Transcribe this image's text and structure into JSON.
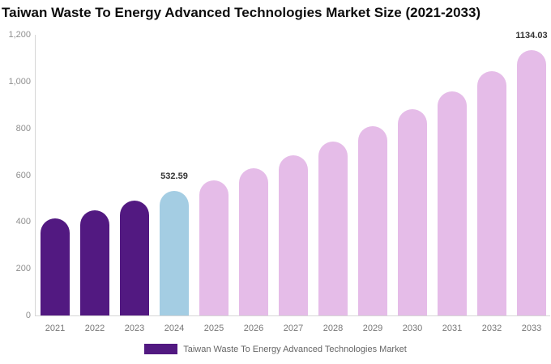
{
  "title": "Taiwan Waste To Energy Advanced Technologies Market Size (2021-2033)",
  "colors": {
    "historical": "#521981",
    "base_year": "#A4CDE3",
    "forecast": "#E5BCE8",
    "axis_line": "#d6d6d6",
    "y_tick_text": "#8f8f8f",
    "x_tick_text": "#757575",
    "value_label_text": "#333333",
    "title_text": "#0d0d0d",
    "legend_text": "#666666"
  },
  "legend": {
    "label": "Taiwan Waste To Energy Advanced Technologies Market",
    "swatch_color": "#521981"
  },
  "chart_data": {
    "type": "bar",
    "title": "Taiwan Waste To Energy Advanced Technologies Market Size (2021-2033)",
    "xlabel": "",
    "ylabel": "",
    "ylim": [
      0,
      1200
    ],
    "grid": false,
    "legend_position": "bottom-center",
    "categories": [
      "2021",
      "2022",
      "2023",
      "2024",
      "2025",
      "2026",
      "2027",
      "2028",
      "2029",
      "2030",
      "2031",
      "2032",
      "2033"
    ],
    "values": [
      414.0,
      450.2,
      489.7,
      532.59,
      579.2,
      630.0,
      685.2,
      745.2,
      810.5,
      881.5,
      958.7,
      1042.7,
      1134.03
    ],
    "segments": [
      "historical",
      "historical",
      "historical",
      "base_year",
      "forecast",
      "forecast",
      "forecast",
      "forecast",
      "forecast",
      "forecast",
      "forecast",
      "forecast",
      "forecast"
    ],
    "value_labels": {
      "2024": "532.59",
      "2033": "1134.03"
    },
    "y_axis": {
      "tick_labels": [
        "0",
        "200",
        "400",
        "600",
        "800",
        "1,000",
        "1,200"
      ],
      "tick_values": [
        0,
        200,
        400,
        600,
        800,
        1000,
        1200
      ]
    }
  }
}
